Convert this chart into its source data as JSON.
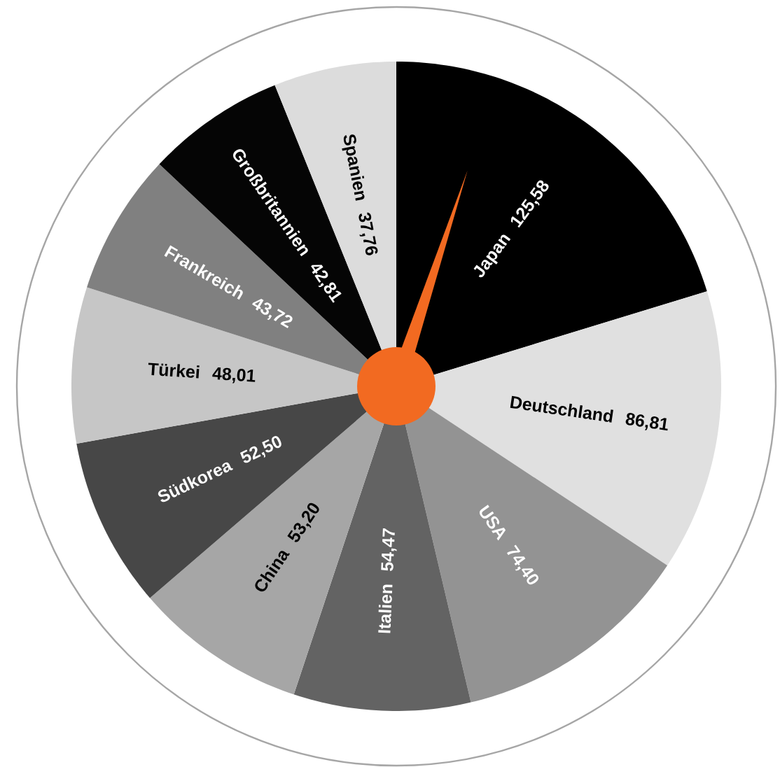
{
  "chart_data": {
    "type": "pie",
    "categories": [
      "Japan",
      "Deutschland",
      "USA",
      "Italien",
      "China",
      "Südkorea",
      "Türkei",
      "Frankreich",
      "Großbritannien",
      "Spanien"
    ],
    "values": [
      125.58,
      86.81,
      74.4,
      54.47,
      53.2,
      52.5,
      48.01,
      43.72,
      42.81,
      37.76
    ],
    "value_labels": [
      "125,58",
      "86,81",
      "74,40",
      "54,47",
      "53,20",
      "52,50",
      "48,01",
      "43,72",
      "42,81",
      "37,76"
    ],
    "colors": [
      "#000000",
      "#e0e0e0",
      "#939393",
      "#636363",
      "#a6a6a6",
      "#474747",
      "#c6c6c6",
      "#808080",
      "#050505",
      "#dcdcdc"
    ],
    "needle": "Japan"
  }
}
